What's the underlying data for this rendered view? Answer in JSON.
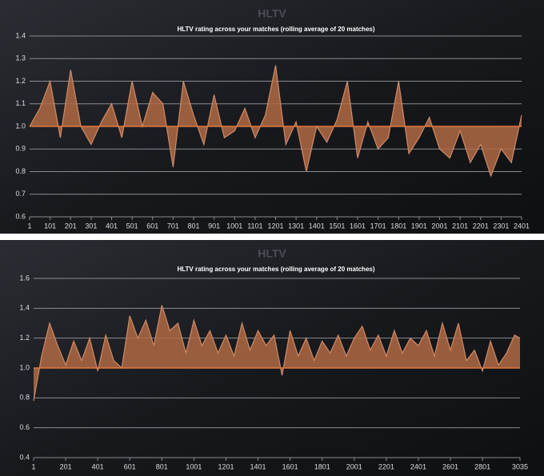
{
  "chart_data": [
    {
      "type": "area",
      "title": "HLTV",
      "subtitle": "HLTV rating across your matches (rolling average of 20 matches)",
      "baseline": 1,
      "color": "#b06a44",
      "line_color": "#d08a66",
      "baseline_color": "#e07a40",
      "grid": true,
      "x": [
        1,
        51,
        101,
        151,
        201,
        251,
        301,
        351,
        401,
        451,
        501,
        551,
        601,
        651,
        701,
        751,
        801,
        851,
        901,
        951,
        1001,
        1051,
        1101,
        1151,
        1201,
        1251,
        1301,
        1351,
        1401,
        1451,
        1501,
        1551,
        1601,
        1651,
        1701,
        1751,
        1801,
        1851,
        1901,
        1951,
        2001,
        2051,
        2101,
        2151,
        2201,
        2251,
        2301,
        2351,
        2401
      ],
      "values": [
        1.0,
        1.08,
        1.2,
        0.95,
        1.25,
        1.0,
        0.92,
        1.02,
        1.1,
        0.95,
        1.2,
        1.0,
        1.15,
        1.1,
        0.82,
        1.2,
        1.05,
        0.92,
        1.14,
        0.95,
        0.98,
        1.08,
        0.95,
        1.05,
        1.27,
        0.92,
        1.02,
        0.8,
        1.0,
        0.93,
        1.03,
        1.2,
        0.86,
        1.02,
        0.9,
        0.95,
        1.2,
        0.88,
        0.95,
        1.04,
        0.9,
        0.86,
        0.98,
        0.84,
        0.92,
        0.78,
        0.9,
        0.84,
        1.05
      ],
      "xlim": [
        1,
        2401
      ],
      "xticks": [
        1,
        101,
        201,
        301,
        401,
        501,
        601,
        701,
        801,
        901,
        1001,
        1101,
        1201,
        1301,
        1401,
        1501,
        1601,
        1701,
        1801,
        1901,
        2001,
        2101,
        2201,
        2301,
        2401
      ],
      "ylim": [
        0.6,
        1.4
      ],
      "yticks": [
        0.6,
        0.7,
        0.8,
        0.9,
        {
          "value": 1,
          "label": "1.0"
        },
        1.1,
        1.2,
        1.3,
        1.4
      ]
    },
    {
      "type": "area",
      "title": "HLTV",
      "subtitle": "HLTV rating across your matches (rolling average of 20 matches)",
      "baseline": 1,
      "color": "#b06a44",
      "line_color": "#d08a66",
      "baseline_color": "#e07a40",
      "grid": true,
      "x": [
        1,
        51,
        101,
        151,
        201,
        251,
        301,
        351,
        401,
        451,
        501,
        551,
        601,
        651,
        701,
        751,
        801,
        851,
        901,
        951,
        1001,
        1051,
        1101,
        1151,
        1201,
        1251,
        1301,
        1351,
        1401,
        1451,
        1501,
        1551,
        1601,
        1651,
        1701,
        1751,
        1801,
        1851,
        1901,
        1951,
        2001,
        2051,
        2101,
        2151,
        2201,
        2251,
        2301,
        2351,
        2401,
        2451,
        2501,
        2551,
        2601,
        2651,
        2701,
        2751,
        2801,
        2851,
        2901,
        2951,
        3001,
        3035
      ],
      "values": [
        0.78,
        1.08,
        1.3,
        1.15,
        1.02,
        1.18,
        1.05,
        1.2,
        0.98,
        1.22,
        1.05,
        1.0,
        1.35,
        1.2,
        1.32,
        1.15,
        1.42,
        1.25,
        1.3,
        1.1,
        1.32,
        1.15,
        1.25,
        1.1,
        1.22,
        1.08,
        1.3,
        1.12,
        1.25,
        1.15,
        1.22,
        0.95,
        1.25,
        1.08,
        1.2,
        1.05,
        1.18,
        1.1,
        1.22,
        1.08,
        1.2,
        1.28,
        1.12,
        1.22,
        1.08,
        1.25,
        1.1,
        1.2,
        1.15,
        1.25,
        1.08,
        1.3,
        1.12,
        1.3,
        1.05,
        1.12,
        0.98,
        1.18,
        1.02,
        1.1,
        1.22,
        1.2
      ],
      "xlim": [
        1,
        3035
      ],
      "xticks": [
        1,
        201,
        401,
        601,
        801,
        1001,
        1201,
        1401,
        1601,
        1801,
        2001,
        2201,
        2401,
        2601,
        2801,
        3035
      ],
      "ylim": [
        0.4,
        1.6
      ],
      "yticks": [
        0.4,
        0.6,
        0.8,
        {
          "value": 1,
          "label": "1.0"
        },
        1.2,
        1.4,
        1.6
      ]
    }
  ]
}
